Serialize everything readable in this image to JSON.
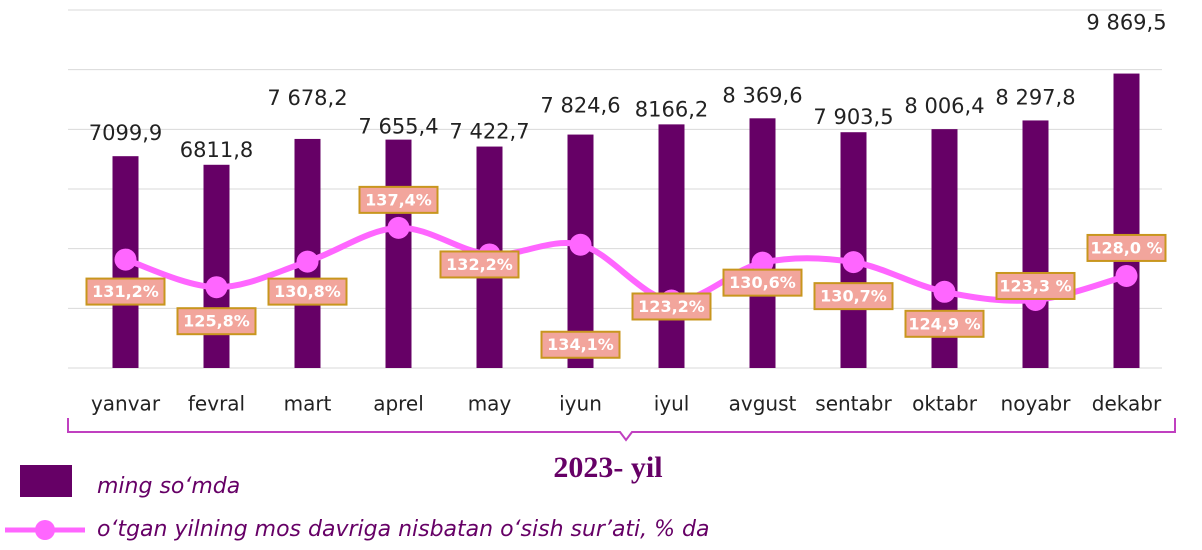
{
  "chart_data": {
    "type": "bar_line",
    "xlabel": "2023- yil",
    "categories": [
      "yanvar",
      "fevral",
      "mart",
      "aprel",
      "may",
      "iyun",
      "iyul",
      "avgust",
      "sentabr",
      "oktabr",
      "noyabr",
      "dekabr"
    ],
    "series": [
      {
        "name": "ming so‘mda",
        "type": "bar",
        "color": "#660066",
        "values": [
          7099.9,
          6811.8,
          7678.2,
          7655.4,
          7422.7,
          7824.6,
          8166.2,
          8369.6,
          7903.5,
          8006.4,
          8297.8,
          9869.5
        ],
        "value_labels": [
          "7099,9",
          "6811,8",
          "7 678,2",
          "7 655,4",
          "7 422,7",
          "7 824,6",
          "8166,2",
          "8 369,6",
          "7 903,5",
          "8 006,4",
          "8 297,8",
          "9 869,5"
        ]
      },
      {
        "name": "o‘tgan yilning mos davriga nisbatan o‘sish sur’ati, % da",
        "type": "line",
        "color": "#ff66ff",
        "axis": "y2",
        "values": [
          131.2,
          125.8,
          130.8,
          137.4,
          132.2,
          134.1,
          123.2,
          130.6,
          130.7,
          124.9,
          123.3,
          128.0
        ],
        "value_labels": [
          "131,2%",
          "125,8%",
          "130,8%",
          "137,4%",
          "132,2%",
          "134,1%",
          "123,2%",
          "130,6%",
          "130,7%",
          "124,9 %",
          "123,3 %",
          "128,0 %"
        ]
      }
    ],
    "ylim": [
      0,
      12000
    ],
    "yticks": [
      0,
      2000,
      4000,
      6000,
      8000,
      10000,
      12000
    ],
    "y2lim": [
      110,
      180
    ],
    "grid": true
  }
}
